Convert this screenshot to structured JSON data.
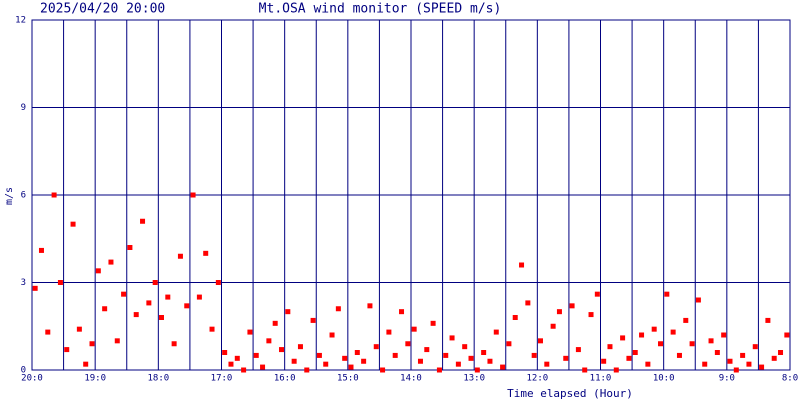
{
  "chart_data": {
    "type": "scatter",
    "title": "Mt.OSA wind monitor (SPEED m/s)",
    "subtitle": "2025/04/20 20:00",
    "x_label": "Time elapsed (Hour)",
    "y_label": "m/s",
    "color": "#ff0000",
    "grid": true,
    "xlim": [
      0,
      12
    ],
    "ylim": [
      0,
      12
    ],
    "xticks": [
      {
        "value": 0,
        "label": "20:0"
      },
      {
        "value": 1,
        "label": "19:0"
      },
      {
        "value": 2,
        "label": "18:0"
      },
      {
        "value": 3,
        "label": "17:0"
      },
      {
        "value": 4,
        "label": "16:0"
      },
      {
        "value": 5,
        "label": "15:0"
      },
      {
        "value": 6,
        "label": "14:0"
      },
      {
        "value": 7,
        "label": "13:0"
      },
      {
        "value": 8,
        "label": "12:0"
      },
      {
        "value": 9,
        "label": "11:0"
      },
      {
        "value": 10,
        "label": "10:0"
      },
      {
        "value": 11,
        "label": "9:0"
      },
      {
        "value": 12,
        "label": "8:0"
      }
    ],
    "xminor": [
      0.5,
      1.5,
      2.5,
      3.5,
      4.5,
      5.5,
      6.5,
      7.5,
      8.5,
      9.5,
      10.5,
      11.5
    ],
    "yticks": [
      0,
      3,
      6,
      9,
      12
    ],
    "x": [
      0.05,
      0.15,
      0.25,
      0.35,
      0.45,
      0.55,
      0.65,
      0.75,
      0.85,
      0.95,
      1.05,
      1.15,
      1.25,
      1.35,
      1.45,
      1.55,
      1.65,
      1.75,
      1.85,
      1.95,
      2.05,
      2.15,
      2.25,
      2.35,
      2.45,
      2.55,
      2.65,
      2.75,
      2.85,
      2.95,
      3.05,
      3.15,
      3.25,
      3.35,
      3.45,
      3.55,
      3.65,
      3.75,
      3.85,
      3.95,
      4.05,
      4.15,
      4.25,
      4.35,
      4.45,
      4.55,
      4.65,
      4.75,
      4.85,
      4.95,
      5.05,
      5.15,
      5.25,
      5.35,
      5.45,
      5.55,
      5.65,
      5.75,
      5.85,
      5.95,
      6.05,
      6.15,
      6.25,
      6.35,
      6.45,
      6.55,
      6.65,
      6.75,
      6.85,
      6.95,
      7.05,
      7.15,
      7.25,
      7.35,
      7.45,
      7.55,
      7.65,
      7.75,
      7.85,
      7.95,
      8.05,
      8.15,
      8.25,
      8.35,
      8.45,
      8.55,
      8.65,
      8.75,
      8.85,
      8.95,
      9.05,
      9.15,
      9.25,
      9.35,
      9.45,
      9.55,
      9.65,
      9.75,
      9.85,
      9.95,
      10.05,
      10.15,
      10.25,
      10.35,
      10.45,
      10.55,
      10.65,
      10.75,
      10.85,
      10.95,
      11.05,
      11.15,
      11.25,
      11.35,
      11.45,
      11.55,
      11.65,
      11.75,
      11.85,
      11.95
    ],
    "values": [
      2.8,
      4.1,
      1.3,
      6.0,
      3.0,
      0.7,
      5.0,
      1.4,
      0.2,
      0.9,
      3.4,
      2.1,
      3.7,
      1.0,
      2.6,
      4.2,
      1.9,
      5.1,
      2.3,
      3.0,
      1.8,
      2.5,
      0.9,
      3.9,
      2.2,
      6.0,
      2.5,
      4.0,
      1.4,
      3.0,
      0.6,
      0.2,
      0.4,
      0.0,
      1.3,
      0.5,
      0.1,
      1.0,
      1.6,
      0.7,
      2.0,
      0.3,
      0.8,
      0.0,
      1.7,
      0.5,
      0.2,
      1.2,
      2.1,
      0.4,
      0.1,
      0.6,
      0.3,
      2.2,
      0.8,
      0.0,
      1.3,
      0.5,
      2.0,
      0.9,
      1.4,
      0.3,
      0.7,
      1.6,
      0.0,
      0.5,
      1.1,
      0.2,
      0.8,
      0.4,
      0.0,
      0.6,
      0.3,
      1.3,
      0.1,
      0.9,
      1.8,
      3.6,
      2.3,
      0.5,
      1.0,
      0.2,
      1.5,
      2.0,
      0.4,
      2.2,
      0.7,
      0.0,
      1.9,
      2.6,
      0.3,
      0.8,
      0.0,
      1.1,
      0.4,
      0.6,
      1.2,
      0.2,
      1.4,
      0.9,
      2.6,
      1.3,
      0.5,
      1.7,
      0.9,
      2.4,
      0.2,
      1.0,
      0.6,
      1.2,
      0.3,
      0.0,
      0.5,
      0.2,
      0.8,
      0.1,
      1.7,
      0.4,
      0.6,
      1.2
    ]
  }
}
